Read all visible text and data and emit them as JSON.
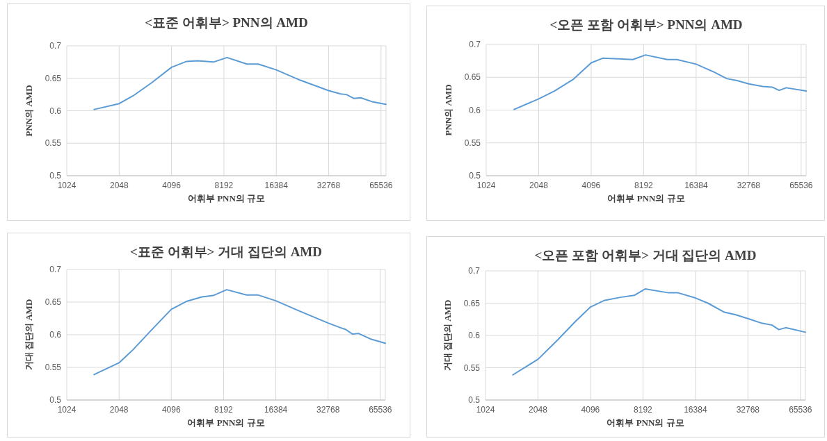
{
  "chart_data": [
    {
      "type": "line",
      "title": "<표준 어휘부> PNN의 AMD",
      "xlabel": "어휘부 PNN의 규모",
      "ylabel": "PNN의 AMD",
      "color": "#5b9bd5",
      "log": "x",
      "grid": true,
      "xlim": [
        1024,
        70000
      ],
      "ylim": [
        0.5,
        0.7
      ],
      "xticks": [
        1024,
        2048,
        4096,
        8192,
        16384,
        32768,
        65536
      ],
      "yticks": [
        0.5,
        0.55,
        0.6,
        0.65,
        0.7
      ],
      "x": [
        1470,
        2048,
        2463,
        3145,
        4096,
        5000,
        5793,
        7130,
        8540,
        11110,
        12900,
        16384,
        22530,
        32768,
        38400,
        41450,
        45630,
        50000,
        58200,
        70000
      ],
      "values": [
        0.602,
        0.611,
        0.623,
        0.643,
        0.667,
        0.676,
        0.677,
        0.675,
        0.682,
        0.672,
        0.672,
        0.663,
        0.647,
        0.631,
        0.626,
        0.625,
        0.619,
        0.62,
        0.614,
        0.61
      ]
    },
    {
      "type": "line",
      "title": "<오픈 포함 어휘부> PNN의 AMD",
      "xlabel": "어휘부 PNN의 규모",
      "ylabel": "PNN의 AMD",
      "color": "#5b9bd5",
      "log": "x",
      "grid": true,
      "xlim": [
        1024,
        70000
      ],
      "ylim": [
        0.5,
        0.7
      ],
      "xticks": [
        1024,
        2048,
        4096,
        8192,
        16384,
        32768,
        65536
      ],
      "yticks": [
        0.5,
        0.55,
        0.6,
        0.65,
        0.7
      ],
      "x": [
        1480,
        2048,
        2520,
        3240,
        4096,
        4770,
        5900,
        7100,
        8400,
        11200,
        12700,
        16384,
        20700,
        24500,
        28100,
        32768,
        39500,
        44700,
        49000,
        53800,
        70000
      ],
      "values": [
        0.601,
        0.617,
        0.629,
        0.647,
        0.672,
        0.679,
        0.678,
        0.677,
        0.684,
        0.677,
        0.677,
        0.67,
        0.658,
        0.648,
        0.645,
        0.64,
        0.636,
        0.635,
        0.63,
        0.634,
        0.629
      ]
    },
    {
      "type": "line",
      "title": "<표준 어휘부> 거대 집단의 AMD",
      "xlabel": "어휘부 PNN의 규모",
      "ylabel": "거대 집단의 AMD",
      "color": "#5b9bd5",
      "log": "x",
      "grid": true,
      "xlim": [
        1024,
        70000
      ],
      "ylim": [
        0.5,
        0.7
      ],
      "xticks": [
        1024,
        2048,
        4096,
        8192,
        16384,
        32768,
        65536
      ],
      "yticks": [
        0.5,
        0.55,
        0.6,
        0.65,
        0.7
      ],
      "x": [
        1470,
        2048,
        2463,
        3145,
        4096,
        5000,
        6150,
        7130,
        8540,
        11110,
        12900,
        16384,
        22530,
        32768,
        38400,
        41450,
        45300,
        49000,
        58200,
        70000
      ],
      "values": [
        0.539,
        0.557,
        0.577,
        0.607,
        0.639,
        0.651,
        0.658,
        0.66,
        0.669,
        0.661,
        0.661,
        0.652,
        0.636,
        0.618,
        0.611,
        0.608,
        0.601,
        0.602,
        0.593,
        0.587
      ]
    },
    {
      "type": "line",
      "title": "<오픈 포함 어휘부> 거대 집단의 AMD",
      "xlabel": "어휘부 PNN의 규모",
      "ylabel": "거대 집단의 AMD",
      "color": "#5b9bd5",
      "log": "x",
      "grid": true,
      "xlim": [
        1024,
        70000
      ],
      "ylim": [
        0.5,
        0.7
      ],
      "xticks": [
        1024,
        2048,
        4096,
        8192,
        16384,
        32768,
        65536
      ],
      "yticks": [
        0.5,
        0.55,
        0.6,
        0.65,
        0.7
      ],
      "x": [
        1470,
        2048,
        2630,
        3370,
        4096,
        4890,
        6080,
        7300,
        8430,
        11500,
        13000,
        16384,
        19300,
        24000,
        27900,
        32768,
        39300,
        45000,
        49300,
        53900,
        70000
      ],
      "values": [
        0.539,
        0.563,
        0.592,
        0.622,
        0.644,
        0.654,
        0.659,
        0.662,
        0.672,
        0.666,
        0.666,
        0.658,
        0.65,
        0.636,
        0.632,
        0.626,
        0.619,
        0.616,
        0.609,
        0.612,
        0.605
      ]
    }
  ]
}
